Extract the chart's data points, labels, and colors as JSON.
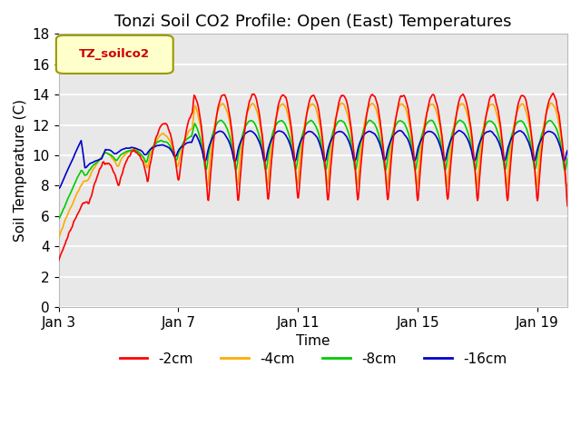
{
  "title": "Tonzi Soil CO2 Profile: Open (East) Temperatures",
  "xlabel": "Time",
  "ylabel": "Soil Temperature (C)",
  "ylim": [
    0,
    18
  ],
  "yticks": [
    0,
    2,
    4,
    6,
    8,
    10,
    12,
    14,
    16,
    18
  ],
  "x_tick_labels": [
    "Jan 3",
    "Jan 7",
    "Jan 11",
    "Jan 15",
    "Jan 19"
  ],
  "legend_label": "TZ_soilco2",
  "series_labels": [
    "-2cm",
    "-4cm",
    "-8cm",
    "-16cm"
  ],
  "series_colors": [
    "#ff0000",
    "#ffaa00",
    "#00cc00",
    "#0000cc"
  ],
  "background_color": "#ffffff",
  "plot_bg_color": "#e8e8e8",
  "grid_color": "#ffffff",
  "title_fontsize": 13,
  "axis_fontsize": 11,
  "tick_fontsize": 11,
  "legend_fontsize": 11,
  "n_days": 17,
  "pts_per_day": 48,
  "x_tick_days": [
    0,
    4,
    8,
    12,
    16
  ]
}
